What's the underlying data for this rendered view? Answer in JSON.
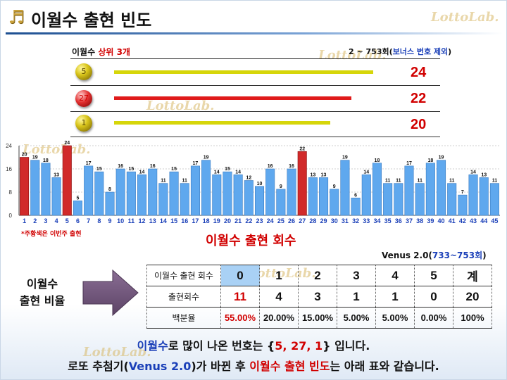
{
  "header": {
    "title": "이월수 출현 빈도",
    "logo_glyph": "♬",
    "watermark": "LottoLab."
  },
  "top3": {
    "label_prefix": "이월수 ",
    "label_highlight": "상위 3개",
    "range_prefix": "2 ~ 753회(",
    "range_highlight": "보너스 번호 제외",
    "range_suffix": ")",
    "items": [
      {
        "number": "5",
        "count": "24",
        "ball_color": "yellow",
        "bar_color": "#d6d60a",
        "value": 24
      },
      {
        "number": "27",
        "count": "22",
        "ball_color": "red",
        "bar_color": "#e01b1b",
        "value": 22
      },
      {
        "number": "1",
        "count": "20",
        "ball_color": "yellow",
        "bar_color": "#d6d60a",
        "value": 20
      }
    ]
  },
  "chart_data": {
    "type": "bar",
    "categories": [
      "1",
      "2",
      "3",
      "4",
      "5",
      "6",
      "7",
      "8",
      "9",
      "10",
      "11",
      "12",
      "13",
      "14",
      "15",
      "16",
      "17",
      "18",
      "19",
      "20",
      "21",
      "22",
      "23",
      "24",
      "25",
      "26",
      "27",
      "28",
      "29",
      "30",
      "31",
      "32",
      "33",
      "34",
      "35",
      "36",
      "37",
      "38",
      "39",
      "40",
      "41",
      "42",
      "43",
      "44",
      "45"
    ],
    "values": [
      20,
      19,
      18,
      13,
      24,
      5,
      17,
      15,
      8,
      16,
      15,
      14,
      16,
      11,
      15,
      11,
      17,
      19,
      14,
      15,
      14,
      12,
      10,
      16,
      9,
      16,
      22,
      13,
      13,
      9,
      19,
      6,
      14,
      18,
      11,
      11,
      17,
      11,
      18,
      19,
      11,
      7,
      14,
      13,
      11
    ],
    "highlight_categories": [
      "1",
      "5",
      "27"
    ],
    "colors": {
      "bar": "#5fa8ee",
      "highlight": "#d12a2a"
    },
    "yticks": [
      "0",
      "8",
      "16",
      "24"
    ],
    "ylim": [
      0,
      24
    ],
    "xlabel": "이월수 출현 회수",
    "note": "*주황색은 이번주 출현",
    "grid": true
  },
  "venus": {
    "prefix": "Venus 2.0(",
    "highlight": "733~753회",
    "suffix": ")"
  },
  "ratio_label": [
    "이월수",
    "출현 비율"
  ],
  "stats_table": {
    "header_row": [
      "이월수 출현 회수",
      "0",
      "1",
      "2",
      "3",
      "4",
      "5",
      "계"
    ],
    "count_row": [
      "출현회수",
      "11",
      "4",
      "3",
      "1",
      "1",
      "0",
      "20"
    ],
    "pct_row": [
      "백분율",
      "55.00%",
      "20.00%",
      "15.00%",
      "5.00%",
      "5.00%",
      "0.00%",
      "100%"
    ]
  },
  "summary": {
    "line1_a": "이월수",
    "line1_b": "로 많이 나온 번호는 {",
    "line1_c": "5, 27, 1",
    "line1_d": "} 입니다.",
    "line2_a": "로또 추첨기(",
    "line2_b": "Venus 2.0",
    "line2_c": ")가 바뀐 후 ",
    "line2_d": "이월수 출현 빈도",
    "line2_e": "는 아래 표와 같습니다."
  }
}
